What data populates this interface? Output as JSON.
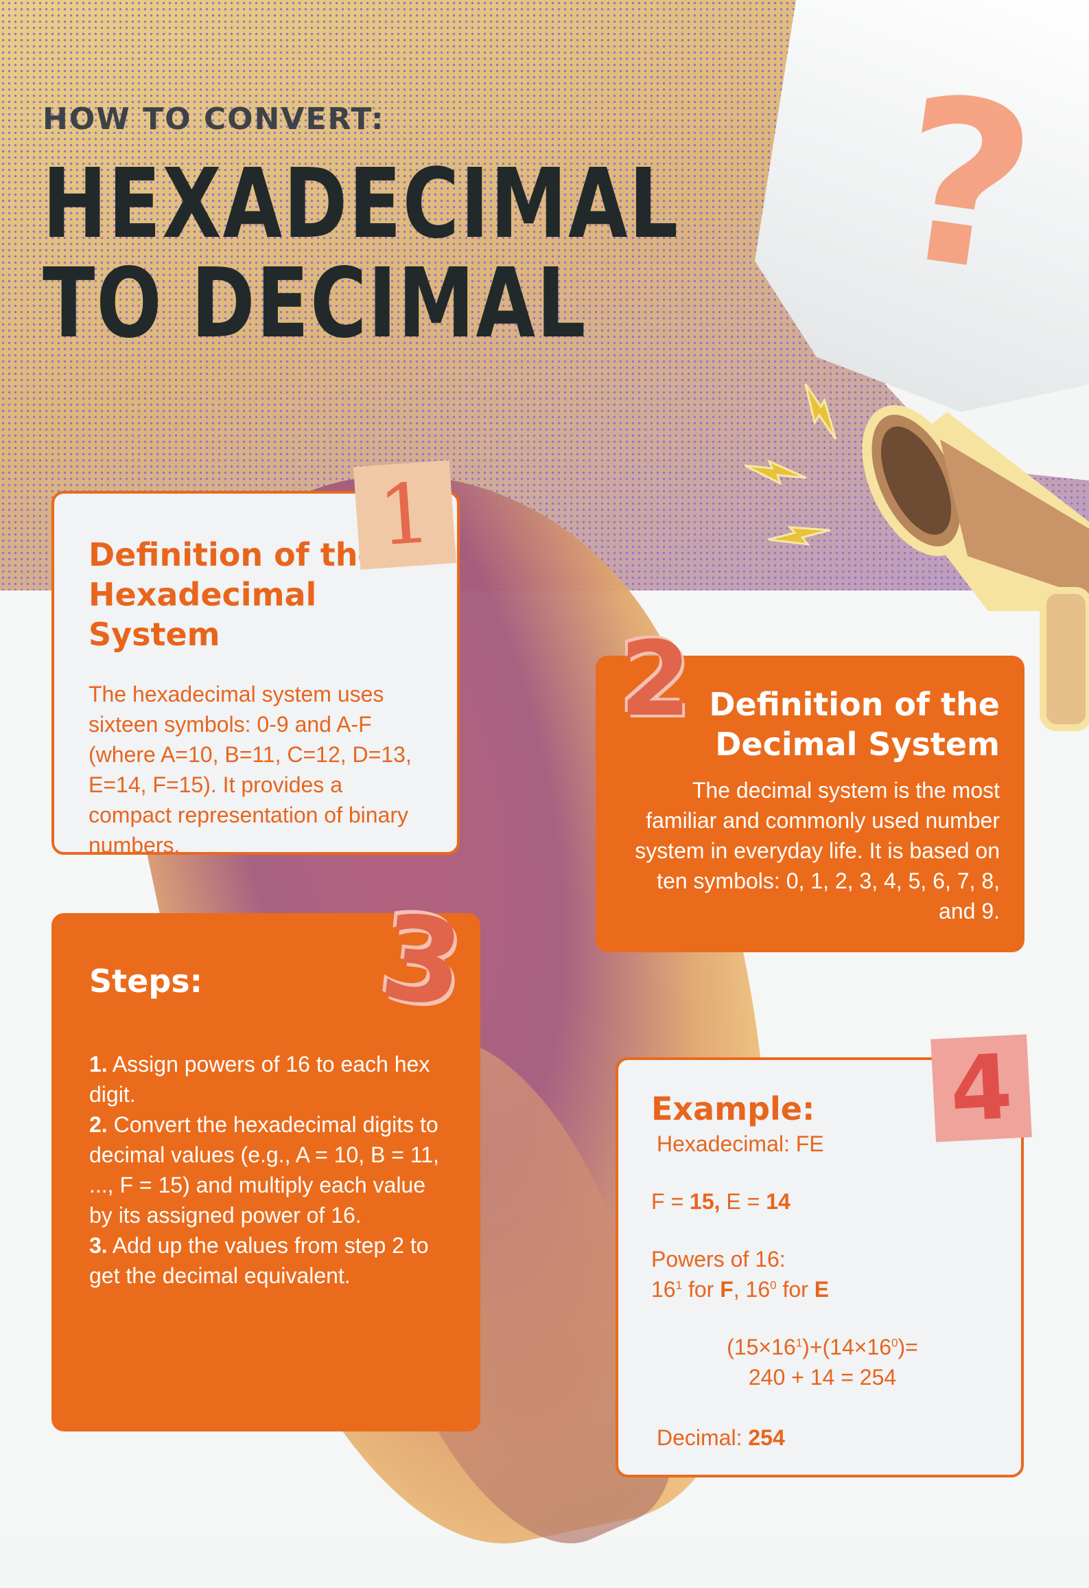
{
  "header": {
    "subtitle": "HOW TO CONVERT:",
    "title_line1": "HEXADECIMAL",
    "title_line2": "TO DECIMAL"
  },
  "decor": {
    "question_mark": "?",
    "accent_color": "#ea6b1c",
    "icons": [
      "question-mark-icon",
      "lightning-bolt-icon",
      "megaphone-icon"
    ]
  },
  "sections": {
    "hex_definition": {
      "number": "1",
      "title_line1": "Definition of the",
      "title_line2": "Hexadecimal System",
      "body": "The hexadecimal system uses sixteen symbols: 0-9 and A-F (where A=10, B=11, C=12, D=13, E=14, F=15). It provides a compact representation of binary numbers."
    },
    "dec_definition": {
      "number": "2",
      "title_line1": "Definition of the",
      "title_line2": "Decimal System",
      "body": "The decimal system is the most familiar and commonly used number system in everyday life. It is based on ten symbols: 0, 1, 2, 3, 4, 5, 6, 7, 8, and 9."
    },
    "steps": {
      "number": "3",
      "title": "Steps:",
      "items": [
        {
          "num": "1.",
          "text": " Assign powers of 16 to each hex digit."
        },
        {
          "num": "2.",
          "text": " Convert the hexadecimal digits to decimal values (e.g., A = 10, B = 11, ..., F = 15) and multiply each value by its assigned power of 16."
        },
        {
          "num": "3.",
          "text": " Add up the values from step 2 to get the decimal equivalent."
        }
      ]
    },
    "example": {
      "number": "4",
      "title": "Example:",
      "hex_line": "Hexadecimal: FE",
      "f_label": "F = ",
      "f_value": "15,",
      "e_label": " E = ",
      "e_value": "14",
      "powers_label": "Powers of 16:",
      "power_base": "16",
      "power_f_exp": "1",
      "for_f": " for ",
      "f_letter": "F",
      "sep": ", ",
      "power_e_exp": "0",
      "for_e": " for ",
      "e_letter": "E",
      "calc_a1": "(15×16",
      "calc_a2": ")+(14×16",
      "calc_a3": ")=",
      "calc_b": "240 + 14 = 254",
      "decimal_label": "Decimal: ",
      "decimal_value": "254"
    }
  }
}
